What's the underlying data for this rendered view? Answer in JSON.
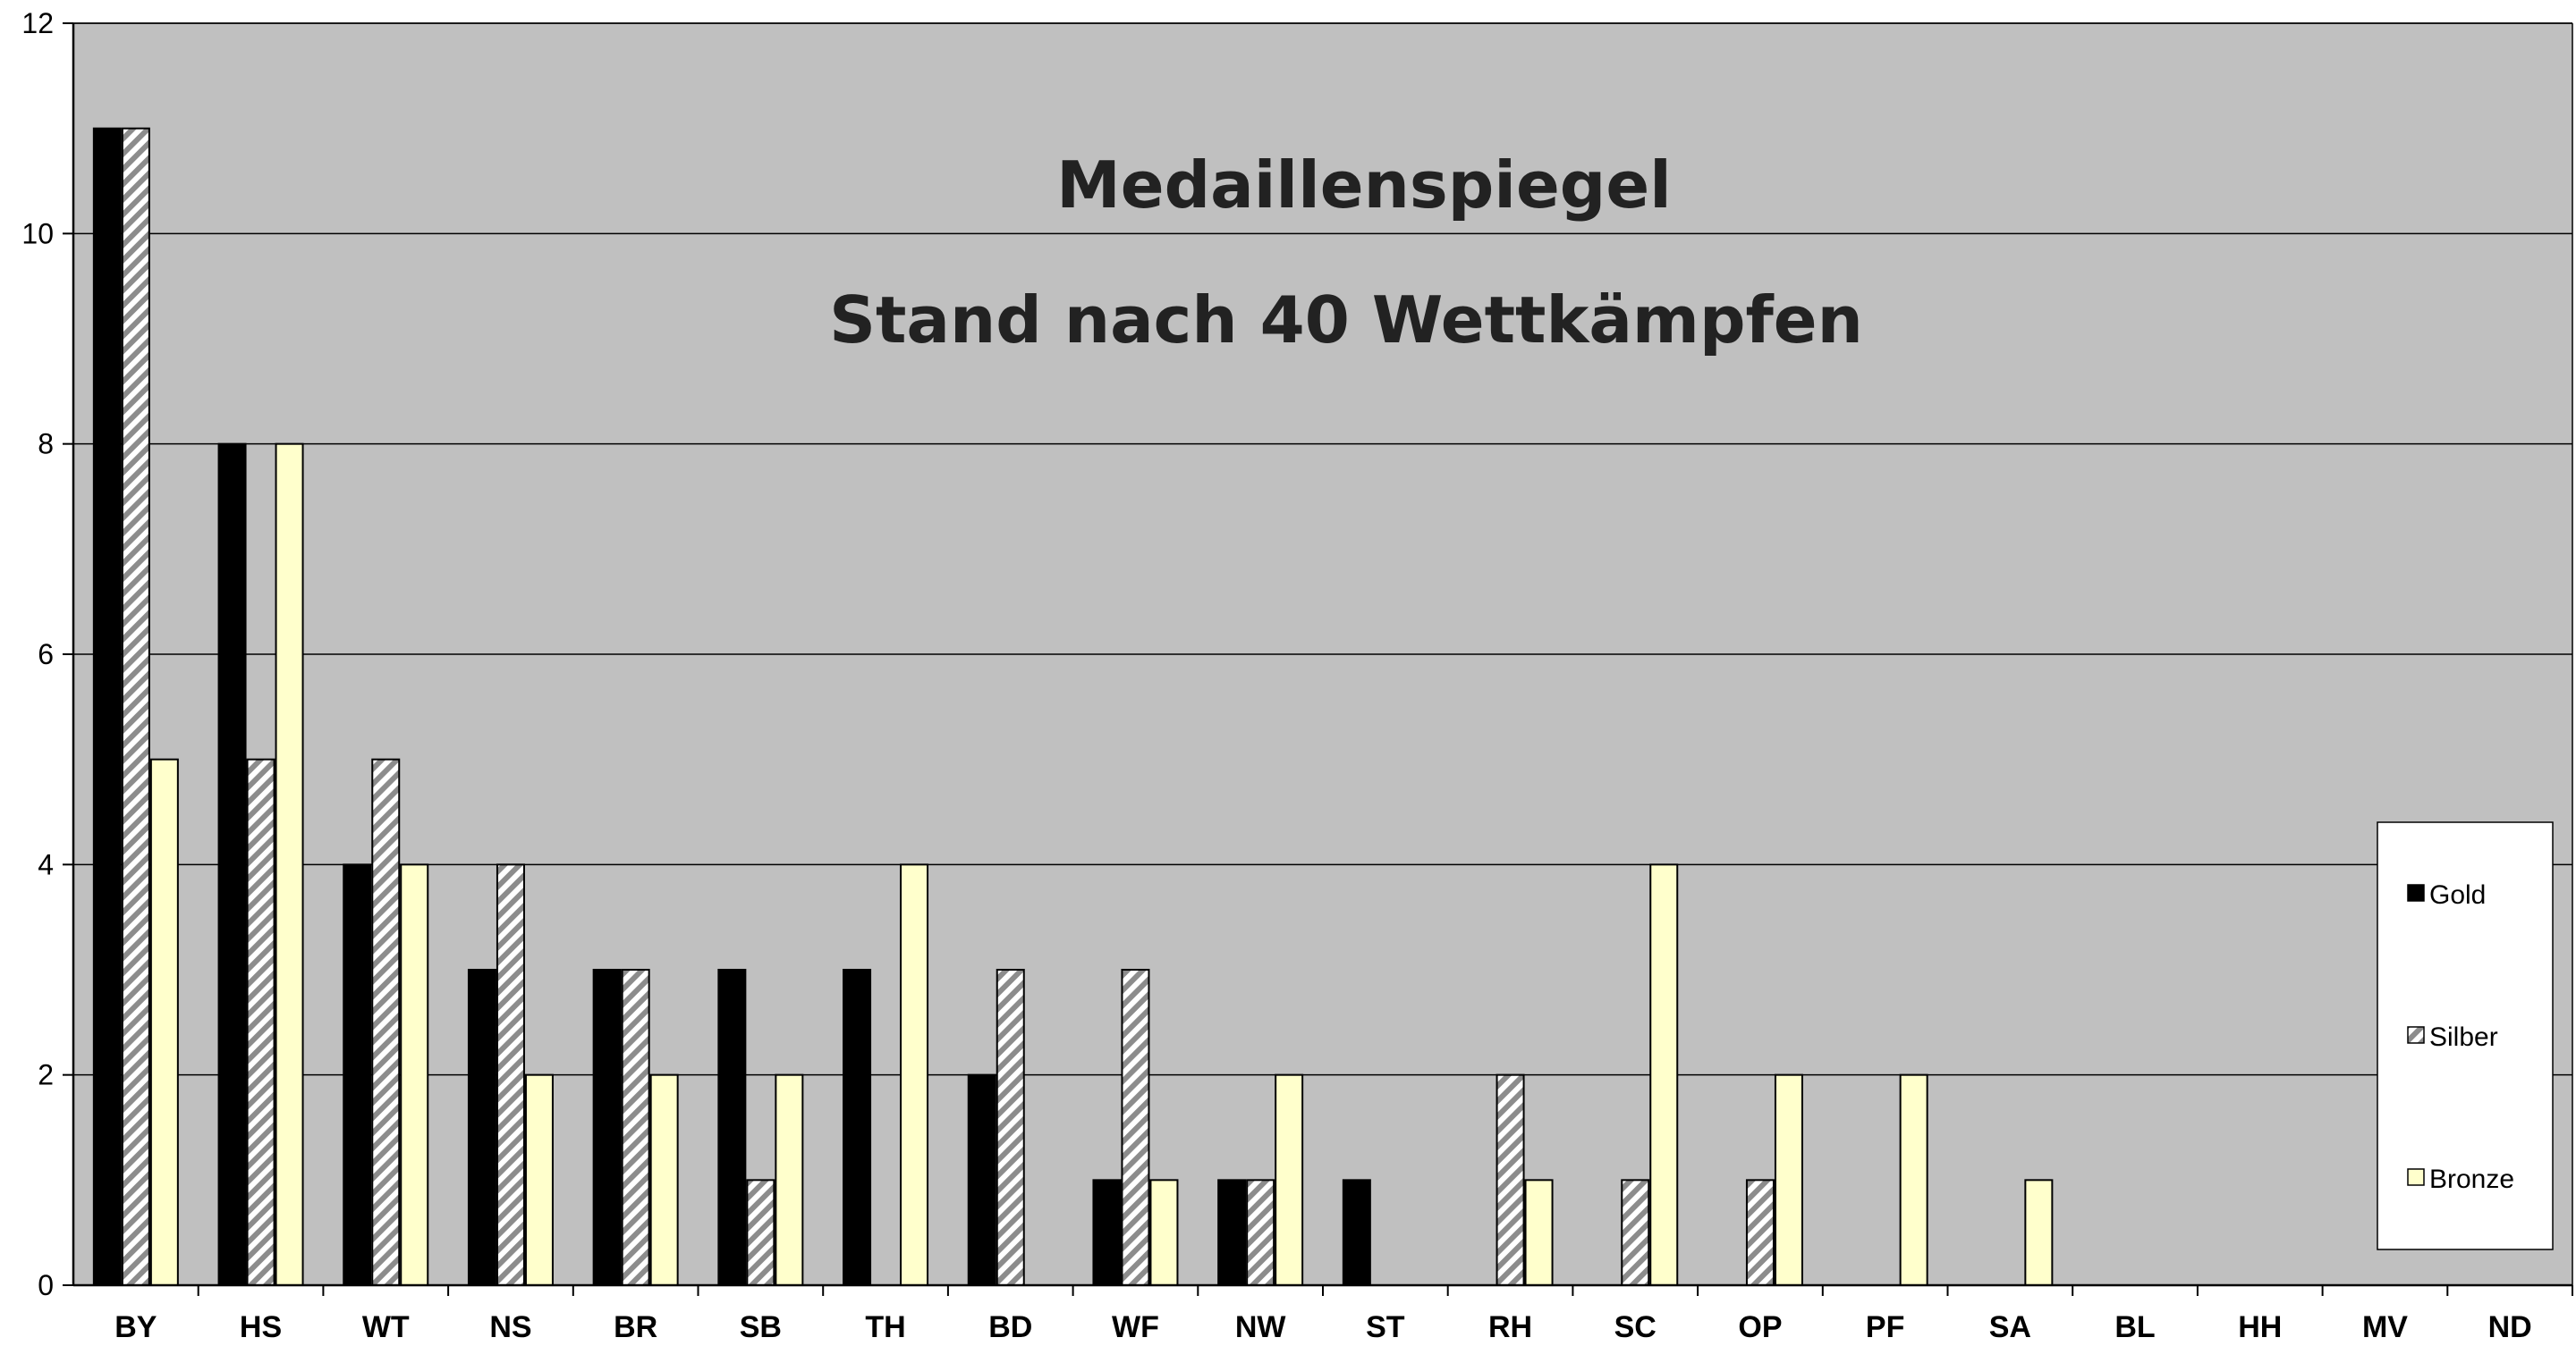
{
  "chart_data": {
    "type": "bar",
    "title": "Medaillenspiegel",
    "subtitle": "Stand nach 40 Wettkämpfen",
    "categories": [
      "BY",
      "HS",
      "WT",
      "NS",
      "BR",
      "SB",
      "TH",
      "BD",
      "WF",
      "NW",
      "ST",
      "RH",
      "SC",
      "OP",
      "PF",
      "SA",
      "BL",
      "HH",
      "MV",
      "ND"
    ],
    "series": [
      {
        "name": "Gold",
        "values": [
          11,
          8,
          4,
          3,
          3,
          3,
          3,
          2,
          1,
          1,
          1,
          0,
          0,
          0,
          0,
          0,
          0,
          0,
          0,
          0
        ],
        "pattern": "solid",
        "color": "#000000"
      },
      {
        "name": "Silber",
        "values": [
          11,
          5,
          5,
          4,
          3,
          1,
          0,
          3,
          3,
          1,
          0,
          2,
          1,
          1,
          0,
          0,
          0,
          0,
          0,
          0
        ],
        "pattern": "hatch",
        "color": "#9a9a9a"
      },
      {
        "name": "Bronze",
        "values": [
          5,
          8,
          4,
          2,
          2,
          2,
          4,
          0,
          1,
          2,
          0,
          1,
          4,
          2,
          2,
          1,
          0,
          0,
          0,
          0
        ],
        "pattern": "solid",
        "color": "#ffffcc"
      }
    ],
    "ylim": [
      0,
      12
    ],
    "yticks": [
      0,
      2,
      4,
      6,
      8,
      10,
      12
    ],
    "grid": true,
    "legend": "right",
    "plot_background": "#c0c0c0"
  }
}
